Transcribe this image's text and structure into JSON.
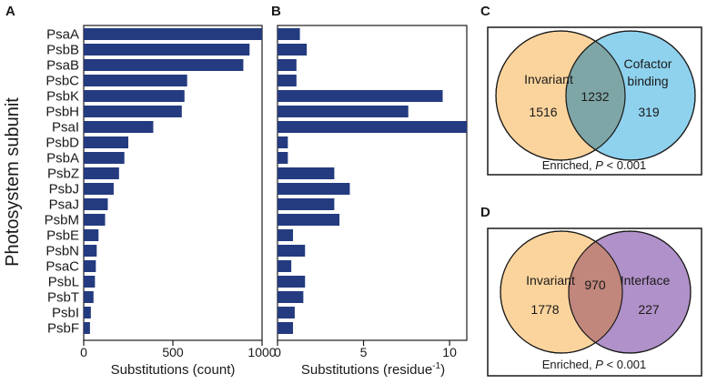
{
  "chart_data": [
    {
      "panel": "A",
      "type": "bar",
      "orientation": "horizontal",
      "categories": [
        "PsaA",
        "PsbB",
        "PsaB",
        "PsbC",
        "PsbK",
        "PsbH",
        "PsaI",
        "PsbD",
        "PsbA",
        "PsbZ",
        "PsbJ",
        "PsaJ",
        "PsbM",
        "PsbE",
        "PsbN",
        "PsaC",
        "PsbL",
        "PsbT",
        "PsbI",
        "PsbF"
      ],
      "values": [
        1000,
        930,
        895,
        580,
        565,
        550,
        390,
        250,
        228,
        198,
        168,
        135,
        120,
        83,
        73,
        68,
        63,
        55,
        40,
        35
      ],
      "ylabel": "Photosystem subunit",
      "xlabel": "Substitutions (count)",
      "xlim": [
        0,
        1000
      ],
      "xticks": [
        "0",
        "500",
        "1000"
      ],
      "grid": false,
      "bar_color": "#243b80"
    },
    {
      "panel": "B",
      "type": "bar",
      "orientation": "horizontal",
      "categories": [
        "PsaA",
        "PsbB",
        "PsaB",
        "PsbC",
        "PsbK",
        "PsbH",
        "PsaI",
        "PsbD",
        "PsbA",
        "PsbZ",
        "PsbJ",
        "PsaJ",
        "PsbM",
        "PsbE",
        "PsbN",
        "PsaC",
        "PsbL",
        "PsbT",
        "PsbI",
        "PsbF"
      ],
      "values": [
        1.3,
        1.7,
        1.1,
        1.1,
        9.6,
        7.6,
        11.0,
        0.6,
        0.6,
        3.3,
        4.2,
        3.3,
        3.6,
        0.9,
        1.6,
        0.8,
        1.6,
        1.5,
        1.0,
        0.9
      ],
      "xlabel_main": "Substitutions (residue",
      "xlabel_sup": "-1",
      "xlabel_end": ")",
      "xlim": [
        0,
        11
      ],
      "xticks": [
        "0",
        "5",
        "10"
      ],
      "grid": false,
      "bar_color": "#243b80"
    },
    {
      "panel": "C",
      "type": "venn",
      "sets": [
        {
          "label_lines": [
            "Invariant"
          ],
          "count": "1516",
          "color": "#fbd49d"
        },
        {
          "label_lines": [
            "Cofactor",
            "binding"
          ],
          "count": "319",
          "color": "#8fd2ee"
        }
      ],
      "intersection": "1232",
      "overlap_color": "#7fa6a6",
      "caption_prefix": "Enriched, ",
      "caption_p": "P",
      "caption_suffix": " < 0.001"
    },
    {
      "panel": "D",
      "type": "venn",
      "sets": [
        {
          "label_lines": [
            "Invariant"
          ],
          "count": "1778",
          "color": "#fbd49d"
        },
        {
          "label_lines": [
            "Interface"
          ],
          "count": "227",
          "color": "#b191c9"
        }
      ],
      "intersection": "970",
      "overlap_color": "#c1867c",
      "caption_prefix": "Enriched, ",
      "caption_p": "P",
      "caption_suffix": " < 0.001"
    }
  ]
}
